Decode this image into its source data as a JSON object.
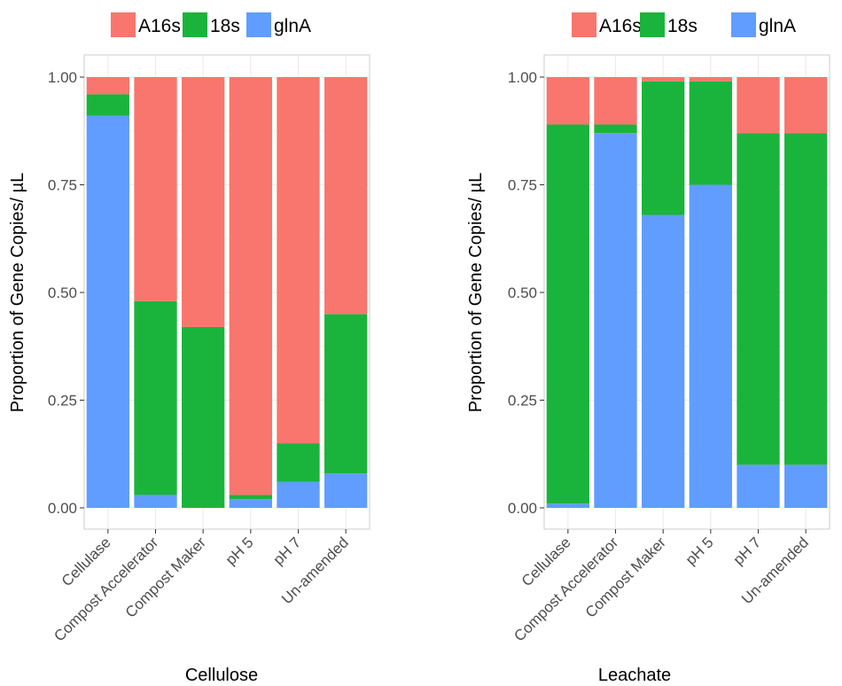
{
  "colors": {
    "A16s": "#f8766d",
    "18s": "#1ab43c",
    "glnA": "#619cff"
  },
  "legend": [
    {
      "key": "A16s",
      "label": "A16s"
    },
    {
      "key": "18s",
      "label": "18s"
    },
    {
      "key": "glnA",
      "label": "glnA"
    }
  ],
  "chart_data": [
    {
      "type": "bar",
      "stacked": true,
      "title": "",
      "xlabel": "Cellulose",
      "ylabel": "Proportion of Gene Copies/ µL",
      "ylim": [
        0,
        1
      ],
      "yticks": [
        "0.00",
        "0.25",
        "0.50",
        "0.75",
        "1.00"
      ],
      "categories": [
        "Cellulase",
        "Compost Accelerator",
        "Compost Maker",
        "pH 5",
        "pH 7",
        "Un-amended"
      ],
      "series": [
        {
          "name": "glnA",
          "values": [
            0.91,
            0.03,
            0.0,
            0.02,
            0.06,
            0.08
          ]
        },
        {
          "name": "18s",
          "values": [
            0.05,
            0.45,
            0.42,
            0.01,
            0.09,
            0.37
          ]
        },
        {
          "name": "A16s",
          "values": [
            0.04,
            0.52,
            0.58,
            0.97,
            0.85,
            0.55
          ]
        }
      ]
    },
    {
      "type": "bar",
      "stacked": true,
      "title": "",
      "xlabel": "Leachate",
      "ylabel": "Proportion of Gene Copies/ µL",
      "ylim": [
        0,
        1
      ],
      "yticks": [
        "0.00",
        "0.25",
        "0.50",
        "0.75",
        "1.00"
      ],
      "categories": [
        "Cellulase",
        "Compost Accelerator",
        "Compost Maker",
        "pH 5",
        "pH 7",
        "Un-amended"
      ],
      "series": [
        {
          "name": "glnA",
          "values": [
            0.01,
            0.87,
            0.68,
            0.75,
            0.1,
            0.1
          ]
        },
        {
          "name": "18s",
          "values": [
            0.88,
            0.02,
            0.31,
            0.24,
            0.77,
            0.77
          ]
        },
        {
          "name": "A16s",
          "values": [
            0.11,
            0.11,
            0.01,
            0.01,
            0.13,
            0.13
          ]
        }
      ]
    }
  ]
}
